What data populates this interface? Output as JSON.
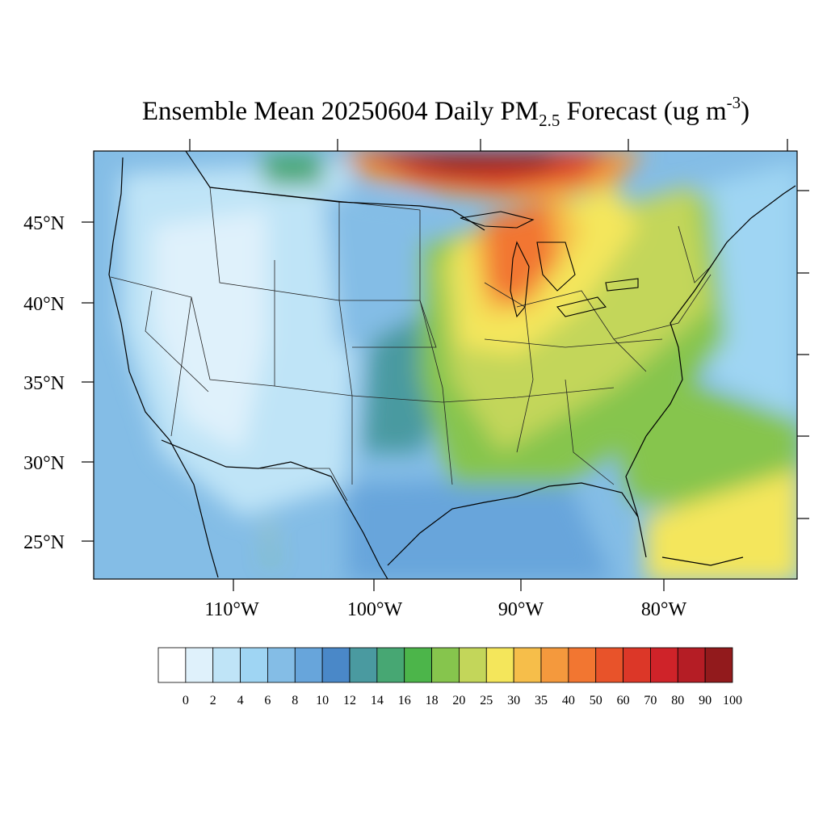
{
  "title": {
    "pre": "Ensemble Mean 20250604 Daily PM",
    "sub": "2.5",
    "mid": " Forecast (ug m",
    "sup": "-3",
    "post": ")"
  },
  "lat_labels": [
    "45°N",
    "40°N",
    "35°N",
    "30°N",
    "25°N"
  ],
  "lon_labels": [
    "110°W",
    "100°W",
    "90°W",
    "80°W"
  ],
  "colorbar": {
    "levels": [
      "0",
      "2",
      "4",
      "6",
      "8",
      "10",
      "12",
      "14",
      "16",
      "18",
      "20",
      "25",
      "30",
      "35",
      "40",
      "50",
      "60",
      "70",
      "80",
      "90",
      "100"
    ],
    "colors": [
      "#ffffff",
      "#dff1fb",
      "#bfe4f7",
      "#9fd5f3",
      "#84bde6",
      "#67a5db",
      "#4a88c8",
      "#4a9aa0",
      "#47a773",
      "#4cb54a",
      "#86c54d",
      "#c3d65a",
      "#f4e65b",
      "#f6be4a",
      "#f4993d",
      "#f27631",
      "#e8532a",
      "#dc3728",
      "#cf2329",
      "#b51d25",
      "#921a1c"
    ]
  },
  "map": {
    "projection": "lambert-conformal",
    "region": "CONUS",
    "variable": "PM2.5"
  }
}
